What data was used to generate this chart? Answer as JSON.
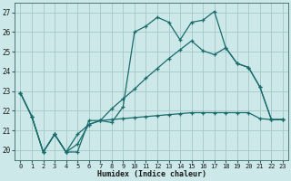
{
  "xlabel": "Humidex (Indice chaleur)",
  "bg_color": "#cce8e8",
  "grid_color": "#aacccc",
  "line_color": "#1a6b6b",
  "ylim": [
    19.5,
    27.5
  ],
  "xlim": [
    -0.5,
    23.5
  ],
  "yticks": [
    20,
    21,
    22,
    23,
    24,
    25,
    26,
    27
  ],
  "xticks": [
    0,
    1,
    2,
    3,
    4,
    5,
    6,
    7,
    8,
    9,
    10,
    11,
    12,
    13,
    14,
    15,
    16,
    17,
    18,
    19,
    20,
    21,
    22,
    23
  ],
  "series1_x": [
    0,
    1,
    2,
    3,
    4,
    5,
    6,
    7,
    8,
    9,
    10,
    11,
    12,
    13,
    14,
    15,
    16,
    17,
    18,
    19,
    20,
    21,
    22,
    23
  ],
  "series1_y": [
    22.9,
    21.7,
    19.9,
    20.8,
    19.9,
    19.9,
    21.5,
    21.5,
    21.4,
    22.2,
    26.0,
    26.3,
    26.75,
    26.5,
    25.6,
    26.5,
    26.6,
    27.05,
    25.2,
    24.4,
    24.2,
    23.2,
    21.55,
    21.55
  ],
  "series2_x": [
    0,
    1,
    2,
    3,
    4,
    5,
    6,
    7,
    8,
    9,
    10,
    11,
    12,
    13,
    14,
    15,
    16,
    17,
    18,
    19,
    20,
    21,
    22,
    23
  ],
  "series2_y": [
    22.9,
    21.7,
    19.9,
    20.8,
    19.9,
    20.8,
    21.3,
    21.5,
    21.55,
    21.6,
    21.65,
    21.7,
    21.75,
    21.8,
    21.85,
    21.9,
    21.9,
    21.9,
    21.9,
    21.9,
    21.9,
    21.6,
    21.55,
    21.55
  ],
  "series3_x": [
    0,
    1,
    2,
    3,
    4,
    5,
    6,
    7,
    8,
    9,
    10,
    11,
    12,
    13,
    14,
    15,
    16,
    17,
    18,
    19,
    20,
    21,
    22,
    23
  ],
  "series3_y": [
    22.9,
    21.7,
    19.9,
    20.8,
    19.9,
    20.3,
    21.3,
    21.5,
    22.1,
    22.6,
    23.1,
    23.65,
    24.15,
    24.65,
    25.1,
    25.55,
    25.05,
    24.85,
    25.2,
    24.4,
    24.2,
    23.2,
    21.55,
    21.55
  ]
}
